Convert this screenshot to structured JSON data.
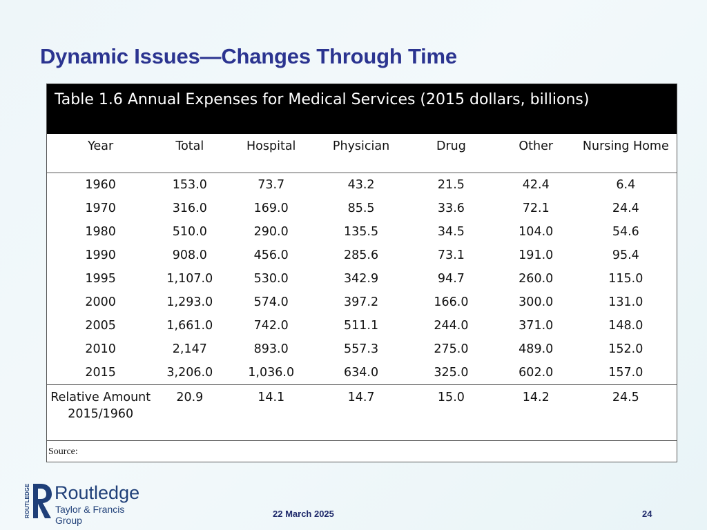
{
  "slide": {
    "title": "Dynamic Issues—Changes Through Time",
    "date": "22 March 2025",
    "page": "24"
  },
  "table": {
    "caption": "Table 1.6  Annual Expenses for Medical Services (2015 dollars, billions)",
    "headers": [
      "Year",
      "Total",
      "Hospital",
      "Physician",
      "Drug",
      "Other",
      "Nursing Home"
    ],
    "rows": [
      [
        "1960",
        "153.0",
        "73.7",
        "43.2",
        "21.5",
        "42.4",
        "6.4"
      ],
      [
        "1970",
        "316.0",
        "169.0",
        "85.5",
        "33.6",
        "72.1",
        "24.4"
      ],
      [
        "1980",
        "510.0",
        "290.0",
        "135.5",
        "34.5",
        "104.0",
        "54.6"
      ],
      [
        "1990",
        "908.0",
        "456.0",
        "285.6",
        "73.1",
        "191.0",
        "95.4"
      ],
      [
        "1995",
        "1,107.0",
        "530.0",
        "342.9",
        "94.7",
        "260.0",
        "115.0"
      ],
      [
        "2000",
        "1,293.0",
        "574.0",
        "397.2",
        "166.0",
        "300.0",
        "131.0"
      ],
      [
        "2005",
        "1,661.0",
        "742.0",
        "511.1",
        "244.0",
        "371.0",
        "148.0"
      ],
      [
        "2010",
        "2,147",
        "893.0",
        "557.3",
        "275.0",
        "489.0",
        "152.0"
      ],
      [
        "2015",
        "3,206.0",
        "1,036.0",
        "634.0",
        "325.0",
        "602.0",
        "157.0"
      ]
    ],
    "relative_row": [
      "Relative Amount 2015/1960",
      "20.9",
      "14.1",
      "14.7",
      "15.0",
      "14.2",
      "24.5"
    ],
    "source": "Source:"
  },
  "logo": {
    "side_text": "ROUTLEDGE",
    "name": "Routledge",
    "subtitle": "Taylor & Francis Group",
    "color": "#1f3f78"
  },
  "colors": {
    "title": "#2b3490",
    "caption_bg": "#000000",
    "footer": "#1f2a6b"
  }
}
